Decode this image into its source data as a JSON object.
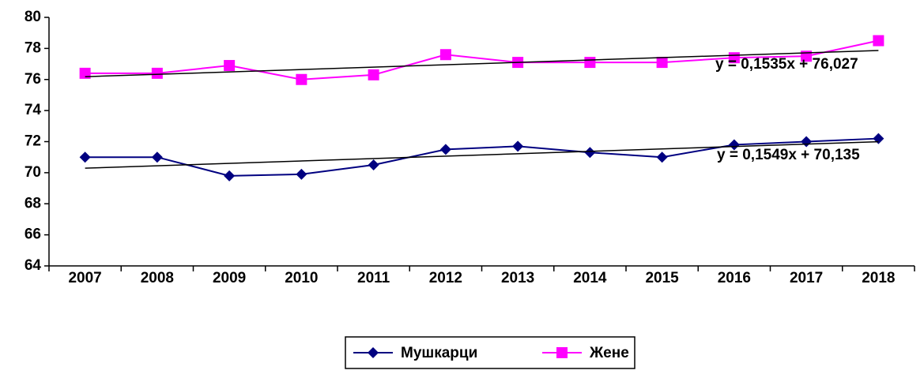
{
  "chart_data": {
    "type": "line",
    "categories": [
      "2007",
      "2008",
      "2009",
      "2010",
      "2011",
      "2012",
      "2013",
      "2014",
      "2015",
      "2016",
      "2017",
      "2018"
    ],
    "series": [
      {
        "name": "Мушкарци",
        "color": "#000080",
        "marker": "diamond",
        "values": [
          71,
          71,
          69.8,
          69.9,
          70.5,
          71.5,
          71.7,
          71.3,
          71.0,
          71.8,
          72.0,
          72.2
        ]
      },
      {
        "name": "Жене",
        "color": "#ff00ff",
        "marker": "square",
        "values": [
          76.4,
          76.4,
          76.9,
          76.0,
          76.3,
          77.6,
          77.1,
          77.1,
          77.1,
          77.4,
          77.5,
          78.5
        ]
      }
    ],
    "trendlines": [
      {
        "series": 0,
        "slope": 0.1549,
        "intercept": 70.135,
        "label": "y = 0,1549x + 70,135"
      },
      {
        "series": 1,
        "slope": 0.1535,
        "intercept": 76.027,
        "label": "y = 0,1535x + 76,027"
      }
    ],
    "ylim": [
      64,
      80
    ],
    "yticks": [
      64,
      66,
      68,
      70,
      72,
      74,
      76,
      78,
      80
    ],
    "legend": "bottom"
  }
}
